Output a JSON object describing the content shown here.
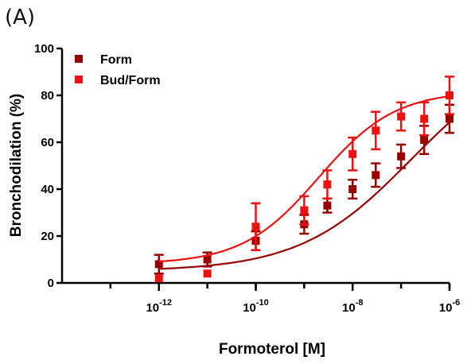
{
  "panel_label": "(A)",
  "chart_data": {
    "type": "scatter",
    "title": "",
    "xlabel": "Formoterol [M]",
    "ylabel": "Bronchodilation (%)",
    "xscale": "log",
    "xlim": [
      1e-14,
      1e-06
    ],
    "ylim": [
      0,
      100
    ],
    "yticks": [
      0,
      20,
      40,
      60,
      80,
      100
    ],
    "xticks": [
      {
        "base": "10",
        "exp": "-12",
        "value": 1e-12
      },
      {
        "base": "10",
        "exp": "-10",
        "value": 1e-10
      },
      {
        "base": "10",
        "exp": "-8",
        "value": 1e-08
      },
      {
        "base": "10",
        "exp": "-6",
        "value": 1e-06
      }
    ],
    "grid": false,
    "legend_position": "top-left",
    "series": [
      {
        "name": "Form",
        "color": "#990000",
        "marker": "square",
        "x": [
          1e-12,
          1e-11,
          1e-10,
          1e-09,
          3e-09,
          1e-08,
          3e-08,
          1e-07,
          3e-07,
          1e-06
        ],
        "y": [
          8,
          10,
          18,
          25,
          33,
          40,
          46,
          54,
          61,
          70
        ],
        "err": [
          4,
          3,
          4,
          4,
          3,
          4,
          5,
          5,
          6,
          6
        ],
        "fit": {
          "bottom": 5,
          "top": 100,
          "logEC50": -6.8,
          "hill": 0.38
        }
      },
      {
        "name": "Bud/Form",
        "color": "#ee1111",
        "marker": "square",
        "x": [
          1e-12,
          1e-11,
          1e-10,
          1e-09,
          3e-09,
          1e-08,
          3e-08,
          1e-07,
          3e-07,
          1e-06
        ],
        "y": [
          2,
          4,
          24,
          31,
          42,
          55,
          65,
          71,
          70,
          80
        ],
        "err": [
          0,
          0,
          10,
          6,
          6,
          7,
          8,
          6,
          7,
          8
        ],
        "fit": {
          "bottom": 8,
          "top": 82,
          "logEC50": -8.7,
          "hill": 0.55
        }
      }
    ]
  }
}
